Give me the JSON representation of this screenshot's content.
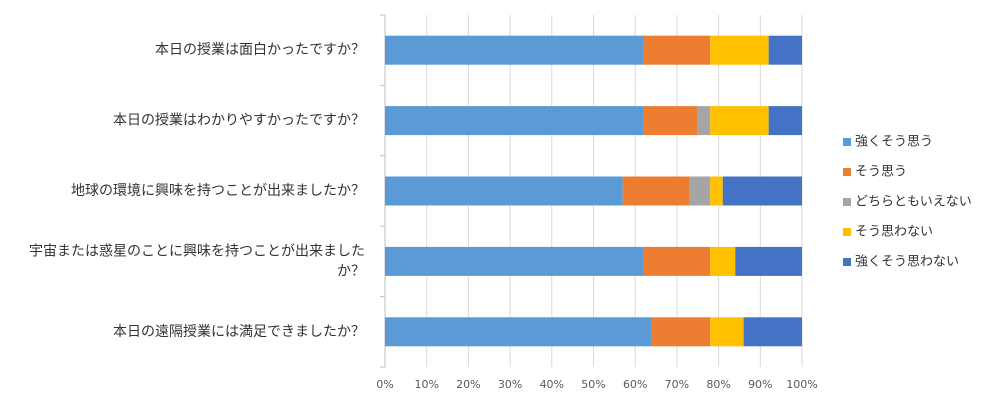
{
  "chart_data": {
    "type": "bar",
    "orientation": "horizontal",
    "stacked": "percent",
    "categories": [
      [
        "本日の授業は面白かったですか？"
      ],
      [
        "本日の授業はわかりやすかったですか？"
      ],
      [
        "地球の環境に興味を持つことが出来ましたか？"
      ],
      [
        "宇宙または惑星のことに興味を持つことが出来ました",
        "か？"
      ],
      [
        "本日の遠隔授業には満足できましたか？"
      ]
    ],
    "series": [
      {
        "name": "強くそう思う",
        "color": "#5B9BD5",
        "values": [
          62,
          62,
          57,
          62,
          64
        ]
      },
      {
        "name": "そう思う",
        "color": "#ED7D31",
        "values": [
          16,
          13,
          16,
          16,
          14
        ]
      },
      {
        "name": "どちらともいえない",
        "color": "#A5A5A5",
        "values": [
          0,
          3,
          5,
          0,
          0
        ]
      },
      {
        "name": "そう思わない",
        "color": "#FFC000",
        "values": [
          14,
          14,
          3,
          6,
          8
        ]
      },
      {
        "name": "強くそう思わない",
        "color": "#4472C4",
        "values": [
          8,
          8,
          19,
          16,
          14
        ]
      }
    ],
    "xlim": [
      0,
      100
    ],
    "x_ticks": [
      "0%",
      "10%",
      "20%",
      "30%",
      "40%",
      "50%",
      "60%",
      "70%",
      "80%",
      "90%",
      "100%"
    ],
    "grid": true,
    "legend_position": "right"
  }
}
